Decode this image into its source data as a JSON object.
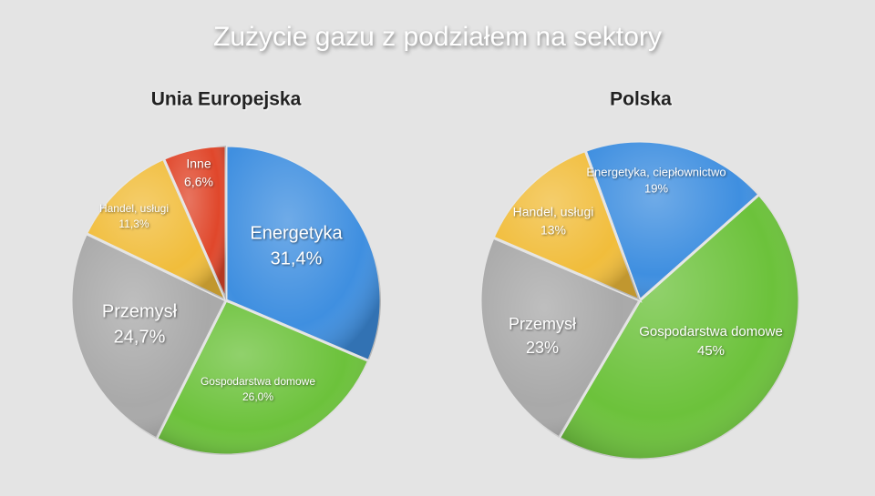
{
  "title": "Zużycie gazu z podziałem na sektory",
  "chart_data": [
    {
      "type": "pie",
      "title": "Unia Europejska",
      "categories": [
        "Energetyka",
        "Gospodarstwa domowe",
        "Przemysł",
        "Handel, usługi",
        "Inne"
      ],
      "values": [
        31.4,
        26.0,
        24.7,
        11.3,
        6.6
      ],
      "value_labels": [
        "31,4%",
        "26,0%",
        "24,7%",
        "11,3%",
        "6,6%"
      ],
      "colors": [
        "#3f8fe0",
        "#6cc23b",
        "#a9a9a9",
        "#f1bd3b",
        "#e0472b"
      ]
    },
    {
      "type": "pie",
      "title": "Polska",
      "categories": [
        "Energetyka, ciepłownictwo",
        "Gospodarstwa domowe",
        "Przemysł",
        "Handel, usługi"
      ],
      "values": [
        19,
        45,
        23,
        13
      ],
      "value_labels": [
        "19%",
        "45%",
        "23%",
        "13%"
      ],
      "colors": [
        "#3f8fe0",
        "#6cc23b",
        "#a9a9a9",
        "#f1bd3b"
      ]
    }
  ]
}
